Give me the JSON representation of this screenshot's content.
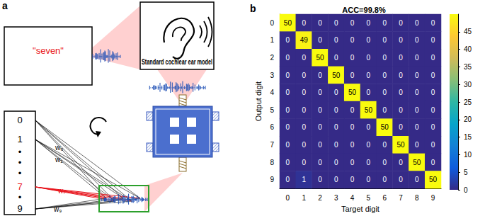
{
  "diagram": {
    "panel_label": "a",
    "input_word": "\"seven\"",
    "ear_model": "Standard cochlear ear model",
    "outputs": [
      "0",
      "1",
      "•",
      "•",
      "•",
      "7",
      "•",
      "9"
    ],
    "highlight": "7",
    "weights": [
      "w₀",
      "w₁",
      "w₇",
      "w₉"
    ]
  },
  "chart_data": {
    "type": "heatmap",
    "panel_label": "b",
    "title": "ACC=99.8%",
    "x_label": "Target digit",
    "y_label": "Output digit",
    "categories": [
      "0",
      "1",
      "2",
      "3",
      "4",
      "5",
      "6",
      "7",
      "8",
      "9"
    ],
    "cells": [
      [
        50,
        0,
        0,
        0,
        0,
        0,
        0,
        0,
        0,
        0
      ],
      [
        0,
        49,
        0,
        0,
        0,
        0,
        0,
        0,
        0,
        0
      ],
      [
        0,
        0,
        50,
        0,
        0,
        0,
        0,
        0,
        0,
        0
      ],
      [
        0,
        0,
        0,
        50,
        0,
        0,
        0,
        0,
        0,
        0
      ],
      [
        0,
        0,
        0,
        0,
        50,
        0,
        0,
        0,
        0,
        0
      ],
      [
        0,
        0,
        0,
        0,
        0,
        50,
        0,
        0,
        0,
        0
      ],
      [
        0,
        0,
        0,
        0,
        0,
        0,
        50,
        0,
        0,
        0
      ],
      [
        0,
        0,
        0,
        0,
        0,
        0,
        0,
        50,
        0,
        0
      ],
      [
        0,
        0,
        0,
        0,
        0,
        0,
        0,
        0,
        50,
        0
      ],
      [
        0,
        1,
        0,
        0,
        0,
        0,
        0,
        0,
        0,
        50
      ]
    ],
    "data_labels": true,
    "colorbar_range": [
      0,
      50
    ],
    "colorbar_ticks": [
      0,
      5,
      10,
      15,
      20,
      25,
      30,
      35,
      40,
      45
    ]
  }
}
